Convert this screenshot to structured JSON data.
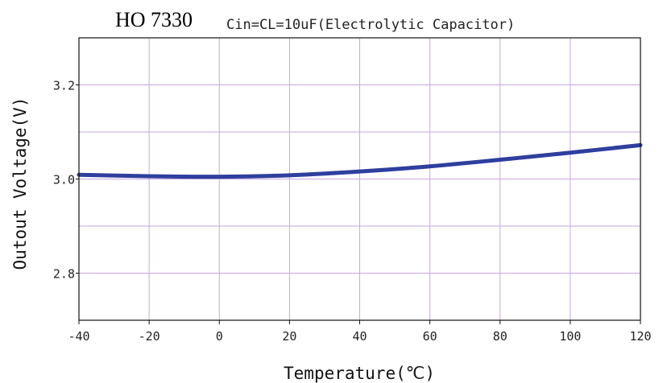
{
  "chart_data": {
    "type": "line",
    "title": "HO 7330",
    "subtitle": "Cin=CL=10uF(Electrolytic Capacitor)",
    "xlabel": "Temperature(℃)",
    "ylabel": "Outout Voltage(V)",
    "xlim": [
      -40,
      120
    ],
    "ylim": [
      2.7,
      3.3
    ],
    "x_ticks": [
      "-40",
      "-20",
      "0",
      "20",
      "40",
      "60",
      "80",
      "100",
      "120"
    ],
    "y_ticks": [
      "2.8",
      "3.0",
      "3.2"
    ],
    "grid": true,
    "colors": {
      "line": "#2e3f9e",
      "grid": "#c9a6e0",
      "frame": "#111111"
    },
    "series": [
      {
        "x": [
          -40,
          -20,
          0,
          20,
          40,
          60,
          80,
          100,
          120
        ],
        "y": [
          3.009,
          3.006,
          3.005,
          3.008,
          3.016,
          3.027,
          3.041,
          3.056,
          3.072
        ]
      }
    ]
  }
}
